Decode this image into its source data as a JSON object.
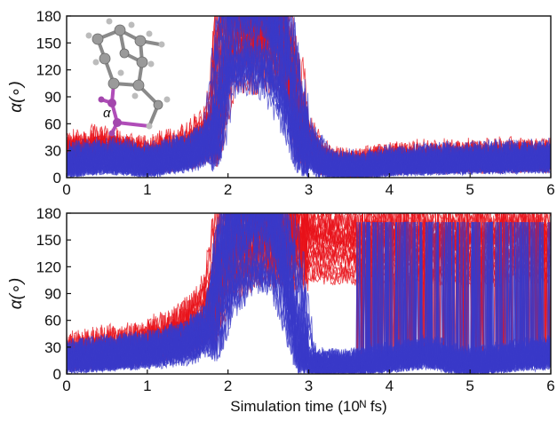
{
  "chart_data": [
    {
      "type": "line",
      "panel": "top",
      "title": "",
      "ylabel": "α(∘)",
      "xlabel": "",
      "xlim": [
        0,
        6
      ],
      "ylim": [
        0,
        180
      ],
      "xticks": [
        "0",
        "1",
        "2",
        "3",
        "4",
        "5",
        "6"
      ],
      "yticks": [
        "0",
        "30",
        "60",
        "90",
        "120",
        "150",
        "180"
      ],
      "grid": false,
      "series_colors": [
        "#e8121a",
        "#3a3ac8"
      ],
      "inset": {
        "label": "α",
        "description_icon": "molecule-ball-and-stick"
      },
      "series": [
        {
          "color": "#e8121a",
          "x": [
            0,
            0.5,
            1.0,
            1.5,
            1.8,
            1.9,
            2.0,
            2.2,
            2.5,
            2.7,
            2.9,
            3.2,
            3.6,
            4.0,
            5.0,
            6.0
          ],
          "y": [
            25,
            30,
            20,
            30,
            50,
            120,
            180,
            180,
            180,
            150,
            50,
            15,
            12,
            18,
            20,
            22
          ]
        },
        {
          "color": "#3a3ac8",
          "x": [
            0,
            0.5,
            1.0,
            1.5,
            1.8,
            1.9,
            2.0,
            2.2,
            2.5,
            2.7,
            2.9,
            3.2,
            3.6,
            4.0,
            5.0,
            6.0
          ],
          "y": [
            15,
            20,
            15,
            25,
            40,
            90,
            170,
            180,
            170,
            120,
            40,
            12,
            10,
            15,
            18,
            20
          ]
        }
      ]
    },
    {
      "type": "line",
      "panel": "bottom",
      "title": "",
      "ylabel": "α(∘)",
      "xlabel": "Simulation time (10ᴺ fs)",
      "xlim": [
        0,
        6
      ],
      "ylim": [
        0,
        180
      ],
      "xticks": [
        "0",
        "1",
        "2",
        "3",
        "4",
        "5",
        "6"
      ],
      "yticks": [
        "0",
        "30",
        "60",
        "90",
        "120",
        "150",
        "180"
      ],
      "grid": false,
      "series_colors": [
        "#e8121a",
        "#3a3ac8"
      ],
      "series": [
        {
          "color": "#e8121a",
          "x": [
            0,
            0.5,
            1.0,
            1.5,
            1.8,
            2.0,
            2.3,
            2.6,
            3.0,
            3.5,
            4.0,
            4.5,
            5.0,
            5.5,
            6.0
          ],
          "y": [
            20,
            25,
            30,
            45,
            70,
            150,
            175,
            172,
            170,
            168,
            165,
            170,
            160,
            170,
            170
          ]
        },
        {
          "color": "#3a3ac8",
          "x": [
            0,
            0.5,
            1.0,
            1.5,
            1.8,
            2.0,
            2.3,
            2.6,
            3.0,
            3.5,
            4.0,
            4.5,
            5.0,
            5.5,
            6.0
          ],
          "y": [
            15,
            18,
            22,
            30,
            45,
            120,
            170,
            165,
            10,
            8,
            15,
            20,
            10,
            15,
            20
          ]
        }
      ]
    }
  ]
}
